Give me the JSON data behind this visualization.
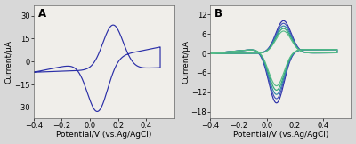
{
  "panel_A_label": "A",
  "panel_B_label": "B",
  "xlim": [
    -0.4,
    0.6
  ],
  "xticks": [
    -0.4,
    -0.2,
    0.0,
    0.2,
    0.4
  ],
  "xlabel": "Potential/V (vs.Ag/AgCl)",
  "ylabel_A": "Current/μA",
  "ylabel_B": "Current/μA",
  "ylim_A": [
    -37,
    37
  ],
  "yticks_A": [
    -30,
    -15,
    0,
    15,
    30
  ],
  "ylim_B": [
    -20,
    15
  ],
  "yticks_B": [
    -18,
    -12,
    -6,
    0,
    6,
    12
  ],
  "bg_color": "#d8d8d8",
  "plot_bg": "#f0eeea",
  "line_color_A": "#2b2fa8",
  "line_colors_B": [
    "#2b2fa8",
    "#4455bb",
    "#3388aa",
    "#33aa77",
    "#55bb88"
  ],
  "linewidth": 0.85,
  "tick_label_fontsize": 6.0,
  "axis_label_fontsize": 6.5,
  "panel_label_fontsize": 8.5
}
